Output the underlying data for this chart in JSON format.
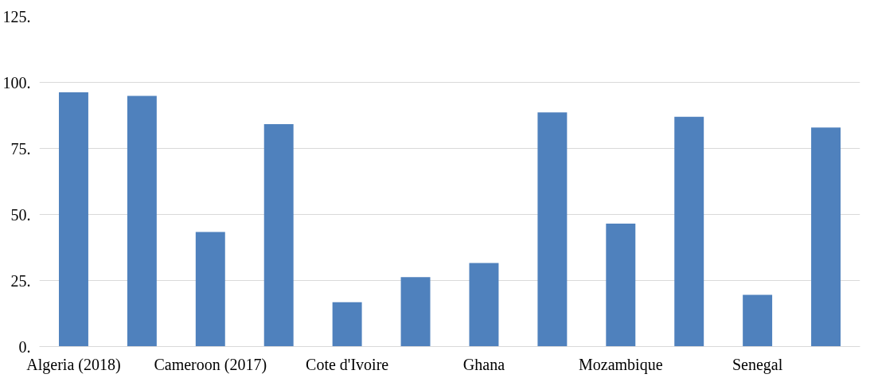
{
  "chart_data": {
    "type": "bar",
    "categories": [
      "Algeria (2018)",
      null,
      "Cameroon (2017)",
      null,
      "Cote d'Ivoire",
      null,
      "Ghana",
      null,
      "Mozambique",
      null,
      "Senegal",
      null
    ],
    "values": [
      96.2,
      94.9,
      43.4,
      84.2,
      16.8,
      26.3,
      31.6,
      88.6,
      46.5,
      87.0,
      19.6,
      82.9
    ],
    "color": "#4f81bd",
    "ylim": [
      0,
      125
    ],
    "yticks": [
      {
        "value": 0,
        "label": "0."
      },
      {
        "value": 25,
        "label": "25."
      },
      {
        "value": 50,
        "label": "50."
      },
      {
        "value": 75,
        "label": "75."
      },
      {
        "value": 100,
        "label": "100."
      },
      {
        "value": 125,
        "label": "125."
      }
    ],
    "grid": "y"
  }
}
